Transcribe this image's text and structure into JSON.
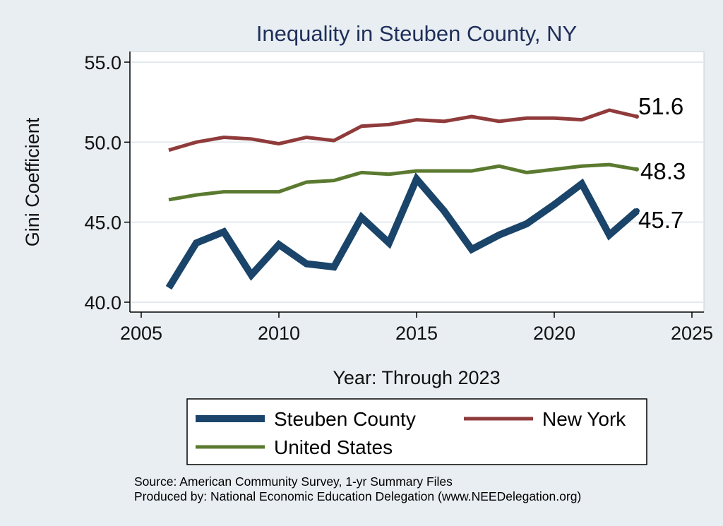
{
  "chart_data": {
    "type": "line",
    "title": "Inequality in Steuben County, NY",
    "xlabel": "Year: Through 2023",
    "ylabel": "Gini Coefficient",
    "xlim": [
      2005,
      2025
    ],
    "ylim": [
      40,
      55
    ],
    "x_ticks": [
      "2005",
      "2010",
      "2015",
      "2020",
      "2025"
    ],
    "y_ticks": [
      "40.0",
      "45.0",
      "50.0",
      "55.0"
    ],
    "x": [
      2006,
      2007,
      2008,
      2009,
      2010,
      2011,
      2012,
      2013,
      2014,
      2015,
      2016,
      2017,
      2018,
      2019,
      2020,
      2021,
      2022,
      2023
    ],
    "series": [
      {
        "name": "Steuben County",
        "color": "#1a4469",
        "values": [
          40.9,
          43.7,
          44.4,
          41.7,
          43.6,
          42.4,
          42.2,
          45.3,
          43.7,
          47.7,
          45.7,
          43.3,
          44.2,
          44.9,
          46.1,
          47.4,
          44.2,
          45.7
        ],
        "end_label": "45.7"
      },
      {
        "name": "New York",
        "color": "#903b3b",
        "values": [
          49.5,
          50.0,
          50.3,
          50.2,
          49.9,
          50.3,
          50.1,
          51.0,
          51.1,
          51.4,
          51.3,
          51.6,
          51.3,
          51.5,
          51.5,
          51.4,
          52.0,
          51.6
        ],
        "end_label": "51.6"
      },
      {
        "name": "United States",
        "color": "#5b7a30",
        "values": [
          46.4,
          46.7,
          46.9,
          46.9,
          46.9,
          47.5,
          47.6,
          48.1,
          48.0,
          48.2,
          48.2,
          48.2,
          48.5,
          48.1,
          48.3,
          48.5,
          48.6,
          48.3
        ],
        "end_label": "48.3"
      }
    ],
    "legend": {
      "placement": "bottom"
    }
  },
  "source": {
    "line1": "Source: American Community Survey, 1-yr Summary Files",
    "line2": "Produced by: National Economic Education Delegation (www.NEEDelegation.org)"
  }
}
